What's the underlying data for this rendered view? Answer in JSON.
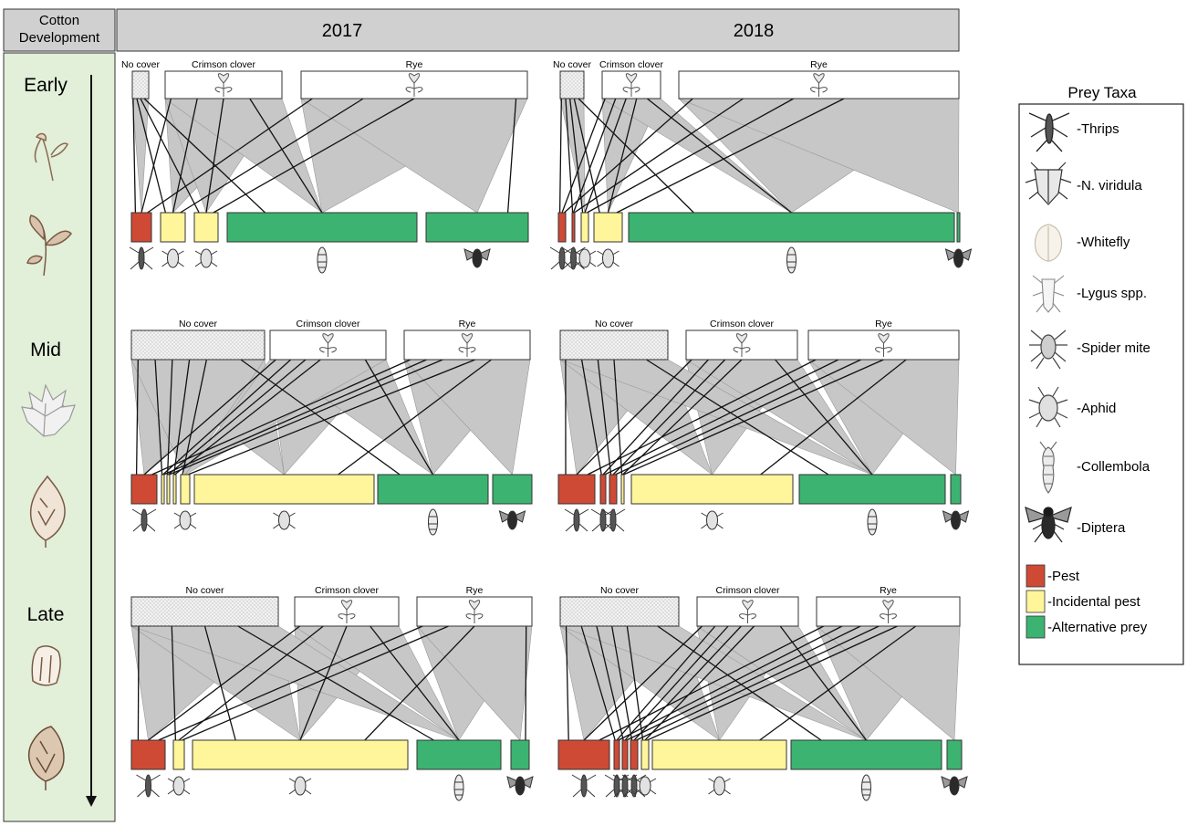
{
  "header": {
    "row_label": [
      "Cotton",
      "Development"
    ],
    "years": [
      "2017",
      "2018"
    ]
  },
  "stages": [
    {
      "label": "Early"
    },
    {
      "label": "Mid"
    },
    {
      "label": "Late"
    }
  ],
  "plant_labels": [
    "No cover",
    "Crimson clover",
    "Rye"
  ],
  "legend": {
    "title": "Prey Taxa",
    "taxa": [
      {
        "label": "-Thrips",
        "icon": "thrips-icon"
      },
      {
        "label": "-N. viridula",
        "icon": "stinkbug-icon"
      },
      {
        "label": "-Whitefly",
        "icon": "whitefly-icon"
      },
      {
        "label": "-Lygus spp.",
        "icon": "lygus-icon"
      },
      {
        "label": "-Spider mite",
        "icon": "spider-mite-icon"
      },
      {
        "label": "-Aphid",
        "icon": "aphid-icon"
      },
      {
        "label": "-Collembola",
        "icon": "collembola-icon"
      },
      {
        "label": "-Diptera",
        "icon": "fly-icon"
      }
    ],
    "categories": [
      {
        "label": "-Pest",
        "color": "#cf4a35"
      },
      {
        "label": "-Incidental pest",
        "color": "#fff59a"
      },
      {
        "label": "-Alternative prey",
        "color": "#3cb371"
      }
    ]
  },
  "colors": {
    "pest": "#cf4a35",
    "incidental": "#fff59a",
    "alternative": "#3cb371",
    "link_fill": "#c7c7c7",
    "stage_panel": "#e2efd9",
    "header_fill": "#d0d0d0"
  }
}
